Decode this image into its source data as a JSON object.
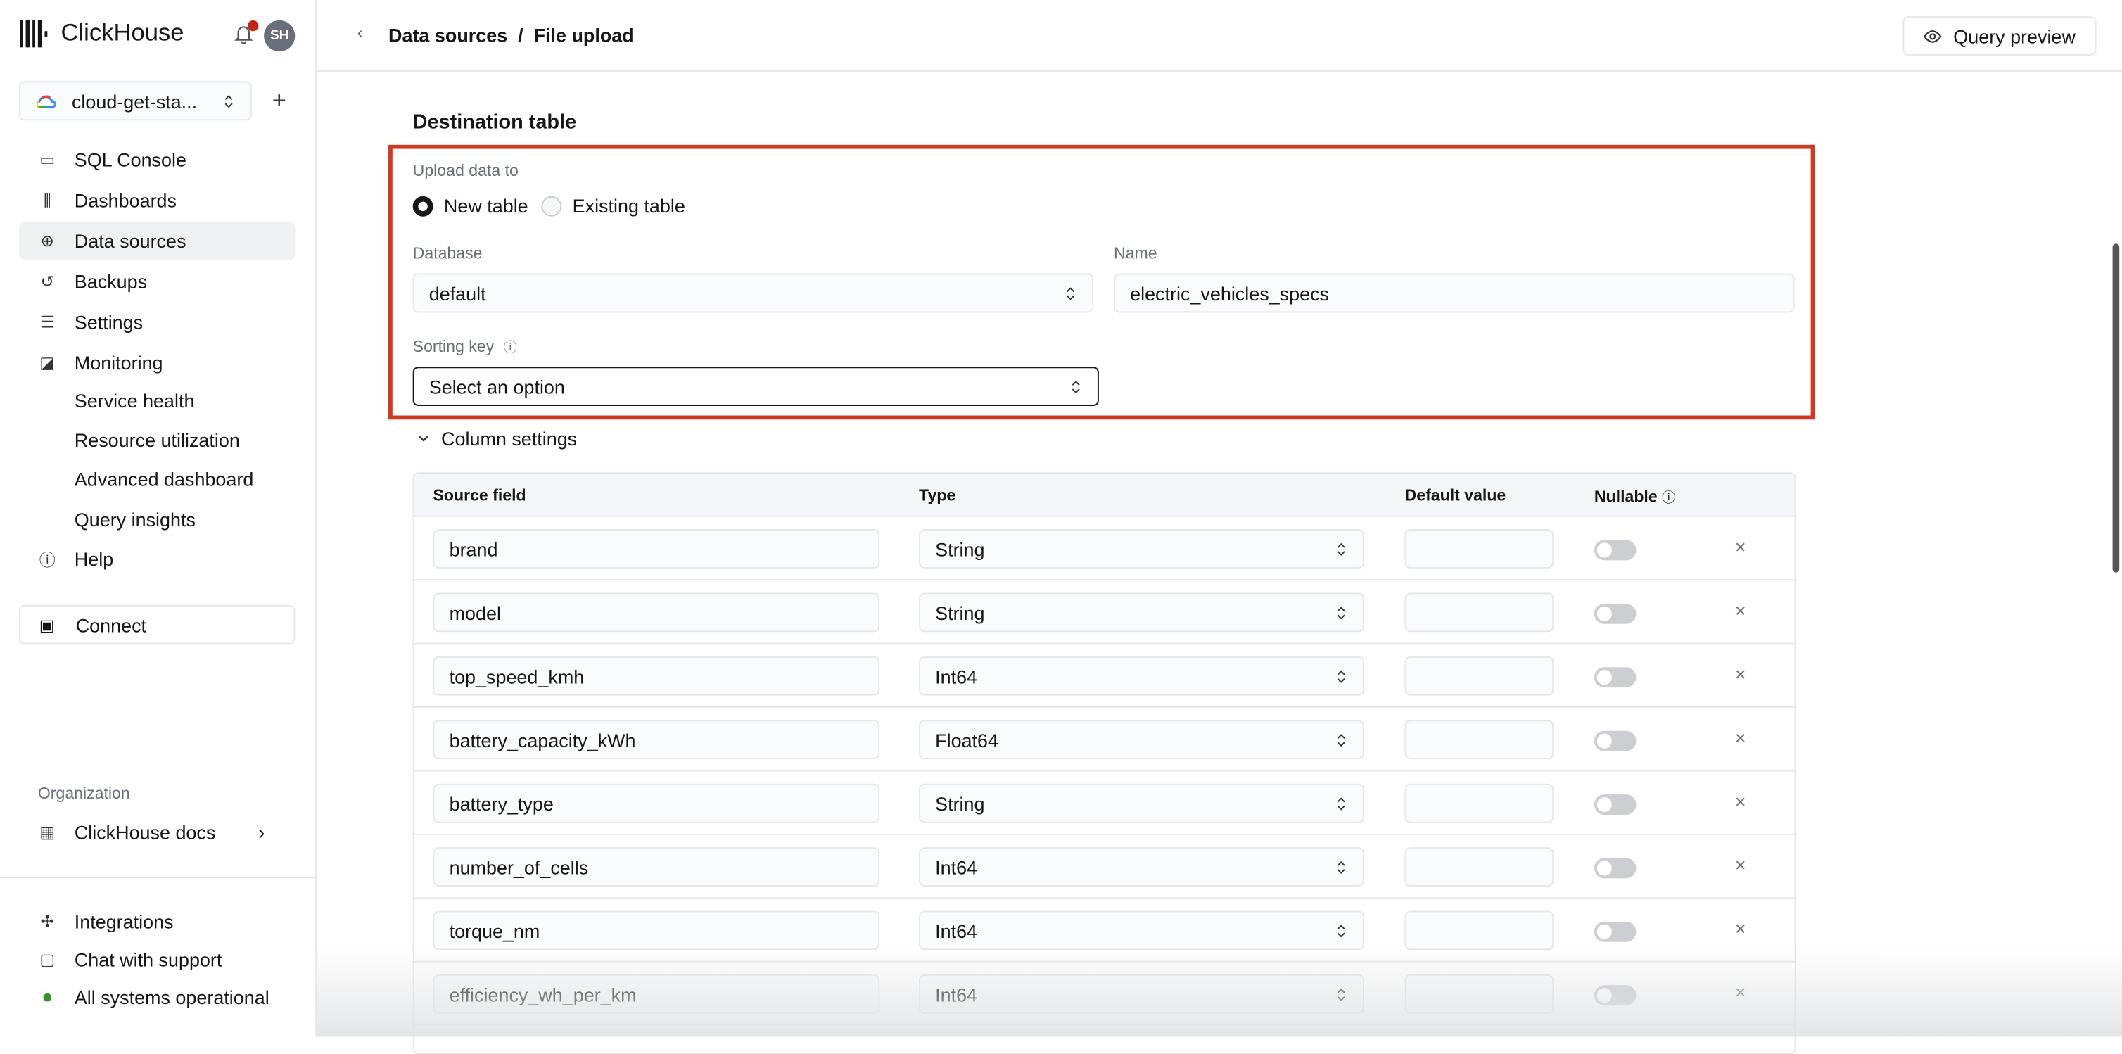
{
  "app": {
    "name": "ClickHouse",
    "avatar_initials": "SH",
    "notification_dot_color": "#c4261a"
  },
  "service": {
    "name": "cloud-get-sta...",
    "icon": "google-cloud-icon"
  },
  "nav": [
    {
      "label": "SQL Console",
      "icon": "monitor-chart-icon"
    },
    {
      "label": "Dashboards",
      "icon": "bar-chart-icon"
    },
    {
      "label": "Data sources",
      "icon": "data-sources-icon",
      "active": true
    },
    {
      "label": "Backups",
      "icon": "history-icon"
    },
    {
      "label": "Settings",
      "icon": "sliders-icon"
    },
    {
      "label": "Monitoring",
      "icon": "activity-icon"
    },
    {
      "label": "Service health"
    },
    {
      "label": "Resource utilization"
    },
    {
      "label": "Advanced dashboard"
    },
    {
      "label": "Query insights"
    },
    {
      "label": "Help",
      "icon": "help-circle-icon"
    }
  ],
  "connect_label": "Connect",
  "organization": {
    "label": "Organization",
    "name": "ClickHouse docs"
  },
  "footer": {
    "integrations": "Integrations",
    "chat": "Chat with support",
    "status": "All systems operational",
    "status_color": "#3a8e2b"
  },
  "header": {
    "breadcrumb": "Data sources  /  File upload",
    "query_preview": "Query preview"
  },
  "destination": {
    "title": "Destination table",
    "upload_label": "Upload data to",
    "options": [
      "New table",
      "Existing table"
    ],
    "selected": "New table",
    "database_label": "Database",
    "database_value": "default",
    "name_label": "Name",
    "name_value": "electric_vehicles_specs",
    "sorting_key_label": "Sorting key",
    "sorting_key_placeholder": "Select an option",
    "highlight_color": "#d13a22"
  },
  "columns": {
    "toggle_label": "Column settings",
    "headers": [
      "Source field",
      "Type",
      "Default value",
      "Nullable"
    ],
    "rows": [
      {
        "field": "brand",
        "type": "String",
        "nullable": false
      },
      {
        "field": "model",
        "type": "String",
        "nullable": false
      },
      {
        "field": "top_speed_kmh",
        "type": "Int64",
        "nullable": false
      },
      {
        "field": "battery_capacity_kWh",
        "type": "Float64",
        "nullable": false
      },
      {
        "field": "battery_type",
        "type": "String",
        "nullable": false
      },
      {
        "field": "number_of_cells",
        "type": "Int64",
        "nullable": false
      },
      {
        "field": "torque_nm",
        "type": "Int64",
        "nullable": false
      },
      {
        "field": "efficiency_wh_per_km",
        "type": "Int64",
        "nullable": false
      }
    ]
  }
}
